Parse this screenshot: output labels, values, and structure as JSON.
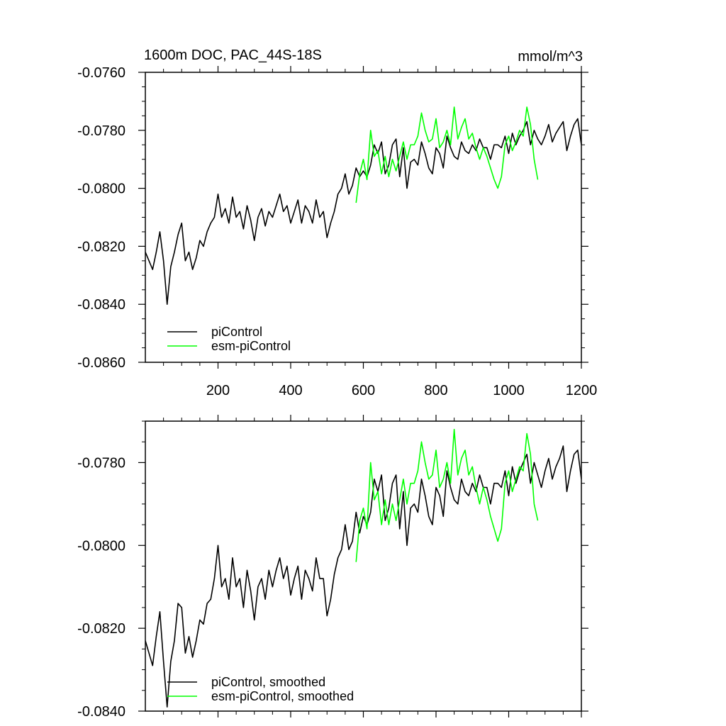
{
  "chart_data": [
    {
      "type": "line",
      "title": "1600m DOC, PAC_44S-18S",
      "units": "mmol/m^3",
      "xlim": [
        0,
        1200
      ],
      "ylim": [
        -0.086,
        -0.076
      ],
      "xticks": [
        200,
        400,
        600,
        800,
        1000,
        1200
      ],
      "xtick_labels": [
        "200",
        "400",
        "600",
        "800",
        "1000",
        "1200"
      ],
      "yticks": [
        -0.086,
        -0.084,
        -0.082,
        -0.08,
        -0.078,
        -0.076
      ],
      "ytick_labels": [
        "-0.0860",
        "-0.0840",
        "-0.0820",
        "-0.0800",
        "-0.0780",
        "-0.0760"
      ],
      "legend_position": "bottom-left",
      "series": [
        {
          "name": "piControl",
          "color": "#000000",
          "x": [
            0,
            10,
            20,
            30,
            40,
            50,
            60,
            70,
            80,
            90,
            100,
            110,
            120,
            130,
            140,
            150,
            160,
            170,
            180,
            190,
            200,
            210,
            220,
            230,
            240,
            250,
            260,
            270,
            280,
            290,
            300,
            310,
            320,
            330,
            340,
            350,
            360,
            370,
            380,
            390,
            400,
            410,
            420,
            430,
            440,
            450,
            460,
            470,
            480,
            490,
            500,
            510,
            520,
            530,
            540,
            550,
            560,
            570,
            580,
            590,
            600,
            610,
            620,
            630,
            640,
            650,
            660,
            670,
            680,
            690,
            700,
            710,
            720,
            730,
            740,
            750,
            760,
            770,
            780,
            790,
            800,
            810,
            820,
            830,
            840,
            850,
            860,
            870,
            880,
            890,
            900,
            910,
            920,
            930,
            940,
            950,
            960,
            970,
            980,
            990,
            1000,
            1010,
            1020,
            1030,
            1040,
            1050,
            1060,
            1070,
            1080,
            1090,
            1100,
            1110,
            1120,
            1130,
            1140,
            1150,
            1160,
            1170,
            1180,
            1190,
            1200
          ],
          "values": [
            -0.0822,
            -0.0825,
            -0.0828,
            -0.0822,
            -0.0815,
            -0.0825,
            -0.084,
            -0.0827,
            -0.0822,
            -0.0816,
            -0.0812,
            -0.0825,
            -0.0822,
            -0.0828,
            -0.0824,
            -0.0818,
            -0.082,
            -0.0815,
            -0.0812,
            -0.081,
            -0.0802,
            -0.081,
            -0.0807,
            -0.0812,
            -0.0803,
            -0.081,
            -0.0808,
            -0.0814,
            -0.0806,
            -0.0811,
            -0.0818,
            -0.081,
            -0.0807,
            -0.0813,
            -0.0808,
            -0.081,
            -0.0806,
            -0.0802,
            -0.0808,
            -0.0806,
            -0.0812,
            -0.0808,
            -0.0804,
            -0.0812,
            -0.0806,
            -0.0808,
            -0.0812,
            -0.0804,
            -0.081,
            -0.0808,
            -0.0817,
            -0.0812,
            -0.0808,
            -0.0802,
            -0.08,
            -0.0795,
            -0.0802,
            -0.0799,
            -0.0793,
            -0.0796,
            -0.0794,
            -0.0796,
            -0.0792,
            -0.0785,
            -0.0788,
            -0.0784,
            -0.0795,
            -0.0792,
            -0.0785,
            -0.0783,
            -0.0796,
            -0.0786,
            -0.08,
            -0.0791,
            -0.079,
            -0.0792,
            -0.0784,
            -0.0788,
            -0.0793,
            -0.0795,
            -0.0786,
            -0.0788,
            -0.0793,
            -0.0782,
            -0.0786,
            -0.0789,
            -0.079,
            -0.0784,
            -0.0787,
            -0.0788,
            -0.0785,
            -0.0787,
            -0.0783,
            -0.0786,
            -0.0786,
            -0.079,
            -0.0785,
            -0.0785,
            -0.0786,
            -0.0782,
            -0.0788,
            -0.0781,
            -0.0785,
            -0.0782,
            -0.078,
            -0.0777,
            -0.0785,
            -0.078,
            -0.0783,
            -0.0785,
            -0.0782,
            -0.0778,
            -0.0784,
            -0.0781,
            -0.0779,
            -0.0777,
            -0.0787,
            -0.0782,
            -0.0778,
            -0.0776,
            -0.0785
          ]
        },
        {
          "name": "esm-piControl",
          "color": "#00ff00",
          "x": [
            580,
            590,
            600,
            610,
            620,
            630,
            640,
            650,
            660,
            670,
            680,
            690,
            700,
            710,
            720,
            730,
            740,
            750,
            760,
            770,
            780,
            790,
            800,
            810,
            820,
            830,
            840,
            850,
            860,
            870,
            880,
            890,
            900,
            910,
            920,
            930,
            940,
            950,
            960,
            970,
            980,
            990,
            1000,
            1010,
            1020,
            1030,
            1040,
            1050,
            1060,
            1070,
            1080
          ],
          "values": [
            -0.0805,
            -0.0795,
            -0.079,
            -0.0797,
            -0.078,
            -0.0789,
            -0.0787,
            -0.0795,
            -0.0789,
            -0.0796,
            -0.079,
            -0.0794,
            -0.0789,
            -0.0784,
            -0.079,
            -0.0785,
            -0.0785,
            -0.0782,
            -0.0774,
            -0.078,
            -0.0784,
            -0.0783,
            -0.0776,
            -0.0786,
            -0.0784,
            -0.078,
            -0.0785,
            -0.0772,
            -0.0783,
            -0.0779,
            -0.0776,
            -0.0783,
            -0.0781,
            -0.0786,
            -0.079,
            -0.0786,
            -0.0789,
            -0.0793,
            -0.0797,
            -0.08,
            -0.0796,
            -0.0785,
            -0.0782,
            -0.0787,
            -0.0784,
            -0.078,
            -0.0782,
            -0.0772,
            -0.0778,
            -0.079,
            -0.0797
          ]
        }
      ]
    },
    {
      "type": "line",
      "title": "",
      "units": "",
      "xlim": [
        0,
        1200
      ],
      "ylim": [
        -0.084,
        -0.077
      ],
      "xticks": [
        200,
        400,
        600,
        800,
        1000,
        1200
      ],
      "xtick_labels": [],
      "yticks": [
        -0.084,
        -0.082,
        -0.08,
        -0.078
      ],
      "ytick_labels": [
        "-0.0840",
        "-0.0820",
        "-0.0800",
        "-0.0780"
      ],
      "legend_position": "bottom-left",
      "series": [
        {
          "name": "piControl, smoothed",
          "color": "#000000",
          "x": [
            0,
            10,
            20,
            30,
            40,
            50,
            60,
            70,
            80,
            90,
            100,
            110,
            120,
            130,
            140,
            150,
            160,
            170,
            180,
            190,
            200,
            210,
            220,
            230,
            240,
            250,
            260,
            270,
            280,
            290,
            300,
            310,
            320,
            330,
            340,
            350,
            360,
            370,
            380,
            390,
            400,
            410,
            420,
            430,
            440,
            450,
            460,
            470,
            480,
            490,
            500,
            510,
            520,
            530,
            540,
            550,
            560,
            570,
            580,
            590,
            600,
            610,
            620,
            630,
            640,
            650,
            660,
            670,
            680,
            690,
            700,
            710,
            720,
            730,
            740,
            750,
            760,
            770,
            780,
            790,
            800,
            810,
            820,
            830,
            840,
            850,
            860,
            870,
            880,
            890,
            900,
            910,
            920,
            930,
            940,
            950,
            960,
            970,
            980,
            990,
            1000,
            1010,
            1020,
            1030,
            1040,
            1050,
            1060,
            1070,
            1080,
            1090,
            1100,
            1110,
            1120,
            1130,
            1140,
            1150,
            1160,
            1170,
            1180,
            1190,
            1200
          ],
          "values": [
            -0.0823,
            -0.0826,
            -0.0829,
            -0.0822,
            -0.0816,
            -0.0828,
            -0.0839,
            -0.0828,
            -0.0823,
            -0.0814,
            -0.0815,
            -0.0826,
            -0.0822,
            -0.0827,
            -0.0823,
            -0.0818,
            -0.0819,
            -0.0814,
            -0.0813,
            -0.0808,
            -0.08,
            -0.081,
            -0.0808,
            -0.0813,
            -0.0803,
            -0.081,
            -0.0808,
            -0.0815,
            -0.0806,
            -0.0811,
            -0.0818,
            -0.081,
            -0.0808,
            -0.0813,
            -0.0806,
            -0.081,
            -0.0806,
            -0.0803,
            -0.0808,
            -0.0805,
            -0.0812,
            -0.0808,
            -0.0805,
            -0.0813,
            -0.0806,
            -0.0808,
            -0.0811,
            -0.0803,
            -0.0808,
            -0.0808,
            -0.0817,
            -0.0813,
            -0.0807,
            -0.0803,
            -0.0801,
            -0.0795,
            -0.0801,
            -0.0799,
            -0.0792,
            -0.0797,
            -0.0793,
            -0.0795,
            -0.0792,
            -0.0784,
            -0.0787,
            -0.0783,
            -0.0794,
            -0.0791,
            -0.0785,
            -0.0783,
            -0.0796,
            -0.0787,
            -0.08,
            -0.0791,
            -0.079,
            -0.0792,
            -0.0784,
            -0.0788,
            -0.0793,
            -0.0795,
            -0.0786,
            -0.0788,
            -0.0793,
            -0.0782,
            -0.0786,
            -0.0789,
            -0.079,
            -0.0784,
            -0.0787,
            -0.0788,
            -0.0785,
            -0.0787,
            -0.0783,
            -0.0786,
            -0.0786,
            -0.079,
            -0.0785,
            -0.0785,
            -0.0786,
            -0.0782,
            -0.0788,
            -0.0781,
            -0.0785,
            -0.0782,
            -0.078,
            -0.0778,
            -0.0785,
            -0.078,
            -0.0783,
            -0.0786,
            -0.0782,
            -0.0779,
            -0.0784,
            -0.0781,
            -0.0779,
            -0.0776,
            -0.0787,
            -0.0782,
            -0.0778,
            -0.0777,
            -0.0784
          ]
        },
        {
          "name": "esm-piControl, smoothed",
          "color": "#00ff00",
          "x": [
            580,
            590,
            600,
            610,
            620,
            630,
            640,
            650,
            660,
            670,
            680,
            690,
            700,
            710,
            720,
            730,
            740,
            750,
            760,
            770,
            780,
            790,
            800,
            810,
            820,
            830,
            840,
            850,
            860,
            870,
            880,
            890,
            900,
            910,
            920,
            930,
            940,
            950,
            960,
            970,
            980,
            990,
            1000,
            1010,
            1020,
            1030,
            1040,
            1050,
            1060,
            1070,
            1080
          ],
          "values": [
            -0.0804,
            -0.0794,
            -0.0791,
            -0.0796,
            -0.078,
            -0.0789,
            -0.0787,
            -0.0795,
            -0.0789,
            -0.0795,
            -0.079,
            -0.0794,
            -0.0789,
            -0.0784,
            -0.079,
            -0.0785,
            -0.0785,
            -0.0782,
            -0.0775,
            -0.078,
            -0.0784,
            -0.0783,
            -0.0777,
            -0.0786,
            -0.0784,
            -0.078,
            -0.0785,
            -0.0772,
            -0.0783,
            -0.0779,
            -0.0777,
            -0.0783,
            -0.0781,
            -0.0786,
            -0.079,
            -0.0786,
            -0.0789,
            -0.0793,
            -0.0796,
            -0.0799,
            -0.0796,
            -0.0785,
            -0.0782,
            -0.0787,
            -0.0784,
            -0.0781,
            -0.0782,
            -0.0773,
            -0.0778,
            -0.079,
            -0.0794
          ]
        }
      ]
    }
  ]
}
